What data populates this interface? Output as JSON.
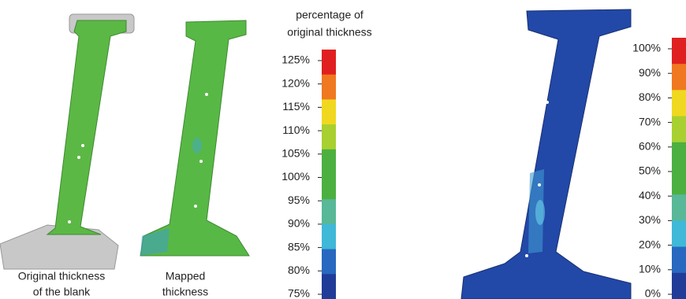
{
  "left_panel": {
    "captions": [
      {
        "lines": [
          "Original thickness",
          "of the blank"
        ]
      },
      {
        "lines": [
          "Mapped",
          "thickness"
        ]
      }
    ],
    "colorbar": {
      "title_lines": [
        "percentage of",
        "original thickness"
      ],
      "labels": [
        "125%",
        "120%",
        "115%",
        "110%",
        "105%",
        "100%",
        "95%",
        "90%",
        "85%",
        "80%",
        "75%"
      ],
      "colors": [
        "#e02020",
        "#f07820",
        "#f0d820",
        "#a8d030",
        "#4cb040",
        "#4cb040",
        "#58b898",
        "#40b8d8",
        "#2868c0",
        "#203c98"
      ]
    }
  },
  "right_panel": {
    "colorbar": {
      "labels": [
        "100%",
        "90%",
        "80%",
        "70%",
        "60%",
        "50%",
        "40%",
        "30%",
        "20%",
        "10%",
        "0%"
      ],
      "colors": [
        "#e02020",
        "#f07820",
        "#f0d820",
        "#a8d030",
        "#4cb040",
        "#4cb040",
        "#58b898",
        "#40b8d8",
        "#2868c0",
        "#203c98"
      ]
    }
  }
}
